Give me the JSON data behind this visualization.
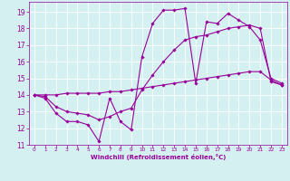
{
  "xlabel": "Windchill (Refroidissement éolien,°C)",
  "background_color": "#d4f0f0",
  "grid_color": "#ffffff",
  "line_color": "#990099",
  "xlim": [
    -0.5,
    23.5
  ],
  "ylim": [
    11,
    19.6
  ],
  "yticks": [
    11,
    12,
    13,
    14,
    15,
    16,
    17,
    18,
    19
  ],
  "xticks": [
    0,
    1,
    2,
    3,
    4,
    5,
    6,
    7,
    8,
    9,
    10,
    11,
    12,
    13,
    14,
    15,
    16,
    17,
    18,
    19,
    20,
    21,
    22,
    23
  ],
  "line1_x": [
    0,
    1,
    2,
    3,
    4,
    5,
    6,
    7,
    8,
    9,
    10,
    11,
    12,
    13,
    14,
    15,
    16,
    17,
    18,
    19,
    20,
    21,
    22,
    23
  ],
  "line1_y": [
    14.0,
    13.8,
    12.9,
    12.4,
    12.4,
    12.2,
    11.2,
    13.8,
    12.4,
    11.9,
    16.3,
    18.3,
    19.1,
    19.1,
    19.2,
    14.7,
    18.4,
    18.3,
    18.9,
    18.5,
    18.1,
    17.3,
    15.0,
    14.7
  ],
  "line2_x": [
    0,
    1,
    2,
    3,
    4,
    5,
    6,
    7,
    8,
    9,
    10,
    11,
    12,
    13,
    14,
    15,
    16,
    17,
    18,
    19,
    20,
    21,
    22,
    23
  ],
  "line2_y": [
    14.0,
    13.9,
    13.3,
    13.0,
    12.9,
    12.8,
    12.5,
    12.7,
    13.0,
    13.2,
    14.3,
    15.2,
    16.0,
    16.7,
    17.3,
    17.5,
    17.6,
    17.8,
    18.0,
    18.1,
    18.2,
    18.0,
    14.8,
    14.6
  ],
  "line3_x": [
    0,
    1,
    2,
    3,
    4,
    5,
    6,
    7,
    8,
    9,
    10,
    11,
    12,
    13,
    14,
    15,
    16,
    17,
    18,
    19,
    20,
    21,
    22,
    23
  ],
  "line3_y": [
    14.0,
    14.0,
    14.0,
    14.1,
    14.1,
    14.1,
    14.1,
    14.2,
    14.2,
    14.3,
    14.4,
    14.5,
    14.6,
    14.7,
    14.8,
    14.9,
    15.0,
    15.1,
    15.2,
    15.3,
    15.4,
    15.4,
    14.9,
    14.6
  ],
  "marker_size": 1.8,
  "line_width": 0.8,
  "xlabel_fontsize": 5.0,
  "xtick_fontsize": 4.2,
  "ytick_fontsize": 5.5
}
